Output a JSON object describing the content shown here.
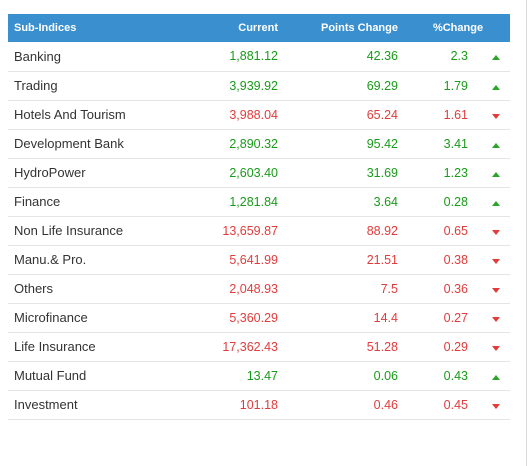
{
  "table": {
    "headers": {
      "name": "Sub-Indices",
      "current": "Current",
      "points_change": "Points Change",
      "pct_change": "%Change"
    },
    "rows": [
      {
        "name": "Banking",
        "current": "1,881.12",
        "points_change": "42.36",
        "pct_change": "2.3",
        "direction": "up"
      },
      {
        "name": "Trading",
        "current": "3,939.92",
        "points_change": "69.29",
        "pct_change": "1.79",
        "direction": "up"
      },
      {
        "name": "Hotels And Tourism",
        "current": "3,988.04",
        "points_change": "65.24",
        "pct_change": "1.61",
        "direction": "down"
      },
      {
        "name": "Development Bank",
        "current": "2,890.32",
        "points_change": "95.42",
        "pct_change": "3.41",
        "direction": "up"
      },
      {
        "name": "HydroPower",
        "current": "2,603.40",
        "points_change": "31.69",
        "pct_change": "1.23",
        "direction": "up"
      },
      {
        "name": "Finance",
        "current": "1,281.84",
        "points_change": "3.64",
        "pct_change": "0.28",
        "direction": "up"
      },
      {
        "name": "Non Life Insurance",
        "current": "13,659.87",
        "points_change": "88.92",
        "pct_change": "0.65",
        "direction": "down"
      },
      {
        "name": "Manu.& Pro.",
        "current": "5,641.99",
        "points_change": "21.51",
        "pct_change": "0.38",
        "direction": "down"
      },
      {
        "name": "Others",
        "current": "2,048.93",
        "points_change": "7.5",
        "pct_change": "0.36",
        "direction": "down"
      },
      {
        "name": "Microfinance",
        "current": "5,360.29",
        "points_change": "14.4",
        "pct_change": "0.27",
        "direction": "down"
      },
      {
        "name": "Life Insurance",
        "current": "17,362.43",
        "points_change": "51.28",
        "pct_change": "0.29",
        "direction": "down"
      },
      {
        "name": "Mutual Fund",
        "current": "13.47",
        "points_change": "0.06",
        "pct_change": "0.43",
        "direction": "up"
      },
      {
        "name": "Investment",
        "current": "101.18",
        "points_change": "0.46",
        "pct_change": "0.45",
        "direction": "down"
      }
    ]
  },
  "colors": {
    "header_bg": "#3a8fce",
    "up": "#1a9a1a",
    "down": "#e03c3c"
  },
  "icons": {
    "up": "triangle-up-icon",
    "down": "triangle-down-icon"
  }
}
